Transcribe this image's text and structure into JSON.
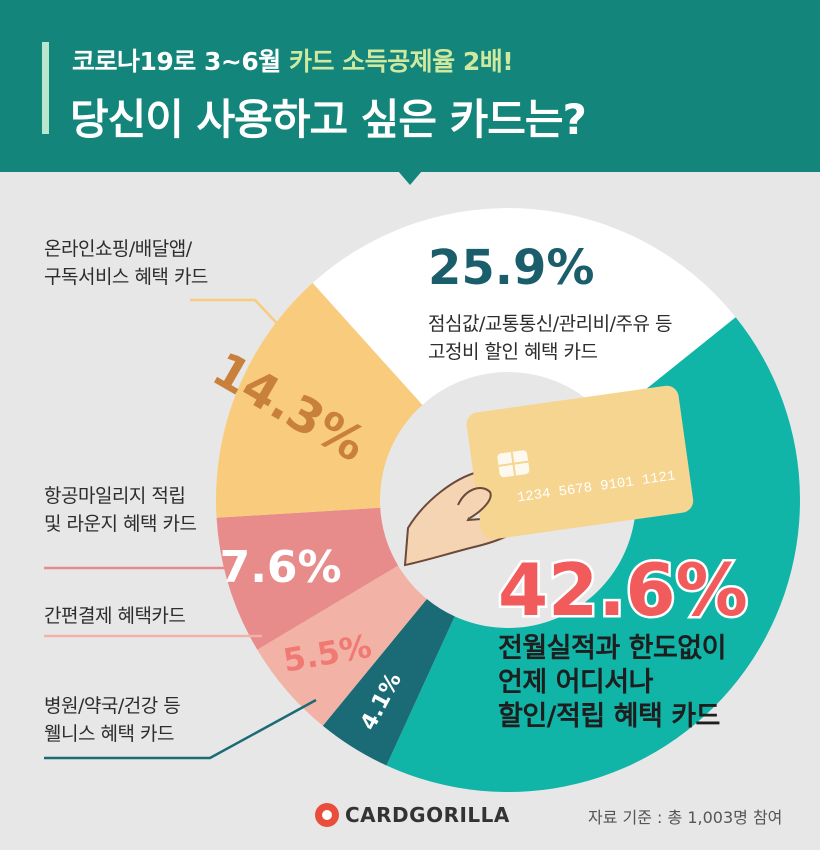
{
  "header": {
    "subtitle_plain": "코로나19로 3~6월 ",
    "subtitle_highlight": "카드 소득공제율 2배!",
    "title": "당신이 사용하고 싶은 카드는?"
  },
  "colors": {
    "header_bg": "#13857a",
    "background": "#e7e7e8",
    "teal": "#10b5a8",
    "white": "#ffffff",
    "yellow": "#f9cb7c",
    "rose": "#e88b8b",
    "pink": "#f2b3a6",
    "dark_teal": "#1b6b77",
    "highlight_red": "#f25b5b",
    "percent_dark": "#1b5e6b"
  },
  "chart_data": {
    "type": "pie",
    "title": "당신이 사용하고 싶은 카드는?",
    "unit": "%",
    "slices": [
      {
        "label": "점심값/교통통신/관리비/주유 등 고정비 할인 혜택 카드",
        "value": 25.9,
        "value_label": "25.9%",
        "color": "#ffffff"
      },
      {
        "label": "전월실적과 한도없이 언제 어디서나 할인/적립 혜택 카드",
        "value": 42.6,
        "value_label": "42.6%",
        "color": "#10b5a8"
      },
      {
        "label": "병원/약국/건강 등 웰니스 혜택 카드",
        "value": 4.1,
        "value_label": "4.1%",
        "color": "#1b6b77"
      },
      {
        "label": "간편결제 혜택카드",
        "value": 5.5,
        "value_label": "5.5%",
        "color": "#f2b3a6"
      },
      {
        "label": "항공마일리지 적립 및 라운지 혜택 카드",
        "value": 7.6,
        "value_label": "7.6%",
        "color": "#e88b8b"
      },
      {
        "label": "온라인쇼핑/배달앱/구독서비스 혜택 카드",
        "value": 14.3,
        "value_label": "14.3%",
        "color": "#f9cb7c"
      }
    ]
  },
  "labels": {
    "fixed_pct": "25.9%",
    "fixed_line1": "점심값/교통통신/관리비/주유 등",
    "fixed_line2": "고정비 할인 혜택 카드",
    "anytime_pct": "42.6%",
    "anytime_line1": "전월실적과 한도없이",
    "anytime_line2": "언제 어디서나",
    "anytime_line3": "할인/적립 혜택 카드",
    "online_line1": "온라인쇼핑/배달앱/",
    "online_line2": "구독서비스 혜택 카드",
    "airline_line1": "항공마일리지 적립",
    "airline_line2": "및 라운지 혜택 카드",
    "easypay_line1": "간편결제 혜택카드",
    "health_line1": "병원/약국/건강 등",
    "health_line2": "웰니스 혜택 카드"
  },
  "card": {
    "number": "1234 5678 9101 1121"
  },
  "footer": {
    "brand": "CARDGORILLA",
    "source": "자료 기준 :  총 1,003명 참여"
  }
}
